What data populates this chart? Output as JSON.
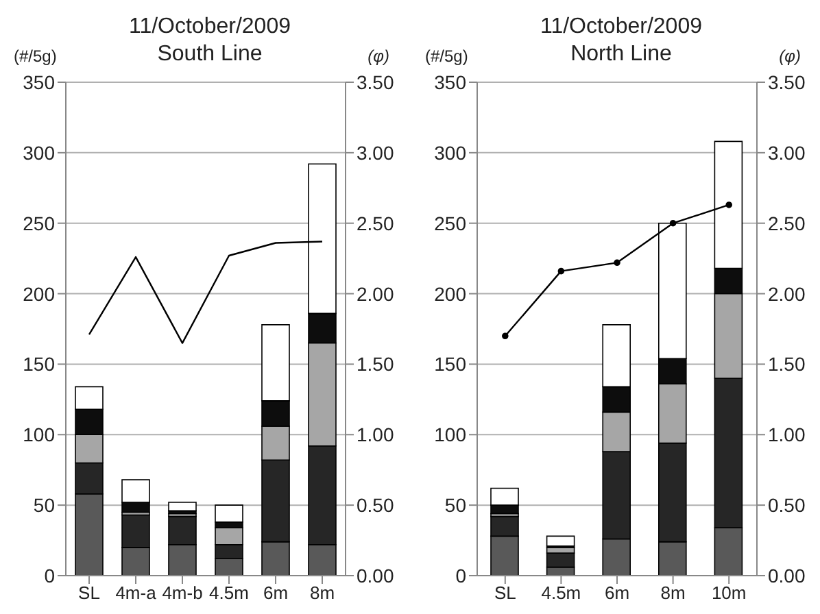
{
  "chart_data": [
    {
      "type": "bar",
      "title": "11/October/2009",
      "subtitle": "South Line",
      "ylabel": "(#/5g)",
      "y2label": "(φ)",
      "stacked": true,
      "grid": "y",
      "categories": [
        "SL",
        "4m-a",
        "4m-b",
        "4.5m",
        "6m",
        "8m"
      ],
      "series": [
        {
          "color": "#595959",
          "values": [
            58,
            20,
            22,
            12,
            24,
            22
          ]
        },
        {
          "color": "#262626",
          "values": [
            22,
            23,
            20,
            10,
            58,
            70
          ]
        },
        {
          "color": "#a6a6a6",
          "values": [
            20,
            2,
            2,
            12,
            24,
            73
          ]
        },
        {
          "color": "#0d0d0d",
          "values": [
            18,
            7,
            2,
            4,
            18,
            21
          ]
        },
        {
          "color": "#ffffff",
          "values": [
            16,
            16,
            6,
            12,
            54,
            106
          ]
        },
        {
          "type": "line",
          "axis": "y2",
          "color": "#000000",
          "values": [
            1.71,
            2.26,
            1.65,
            2.27,
            2.36,
            2.37
          ]
        }
      ],
      "ylim": [
        0,
        350
      ],
      "yticks": [
        0,
        50,
        100,
        150,
        200,
        250,
        300,
        350
      ],
      "y2lim": [
        0,
        3.5
      ],
      "y2ticks": [
        {
          "value": 0,
          "label": "0.00"
        },
        {
          "value": 0.5,
          "label": "0.50"
        },
        {
          "value": 1,
          "label": "1.00"
        },
        {
          "value": 1.5,
          "label": "1.50"
        },
        {
          "value": 2,
          "label": "2.00"
        },
        {
          "value": 2.5,
          "label": "2.50"
        },
        {
          "value": 3,
          "label": "3.00"
        },
        {
          "value": 3.5,
          "label": "3.50"
        }
      ]
    },
    {
      "type": "bar",
      "title": "11/October/2009",
      "subtitle": "North Line",
      "ylabel": "(#/5g)",
      "y2label": "(φ)",
      "stacked": true,
      "grid": "y",
      "marker": "circle",
      "categories": [
        "SL",
        "4.5m",
        "6m",
        "8m",
        "10m"
      ],
      "series": [
        {
          "color": "#595959",
          "values": [
            28,
            6,
            26,
            24,
            34
          ]
        },
        {
          "color": "#262626",
          "values": [
            14,
            10,
            62,
            70,
            106
          ]
        },
        {
          "color": "#a6a6a6",
          "values": [
            2,
            4,
            28,
            42,
            60
          ]
        },
        {
          "color": "#0d0d0d",
          "values": [
            6,
            1,
            18,
            18,
            18
          ]
        },
        {
          "color": "#ffffff",
          "values": [
            12,
            7,
            44,
            96,
            90
          ]
        },
        {
          "type": "line",
          "axis": "y2",
          "color": "#000000",
          "values": [
            1.7,
            2.16,
            2.22,
            2.5,
            2.63
          ]
        }
      ],
      "ylim": [
        0,
        350
      ],
      "yticks": [
        0,
        50,
        100,
        150,
        200,
        250,
        300,
        350
      ],
      "y2lim": [
        0,
        3.5
      ],
      "y2ticks": [
        {
          "value": 0,
          "label": "0.00"
        },
        {
          "value": 0.5,
          "label": "0.50"
        },
        {
          "value": 1,
          "label": "1.00"
        },
        {
          "value": 1.5,
          "label": "1.50"
        },
        {
          "value": 2,
          "label": "2.00"
        },
        {
          "value": 2.5,
          "label": "2.50"
        },
        {
          "value": 3,
          "label": "3.00"
        },
        {
          "value": 3.5,
          "label": "3.50"
        }
      ]
    }
  ]
}
